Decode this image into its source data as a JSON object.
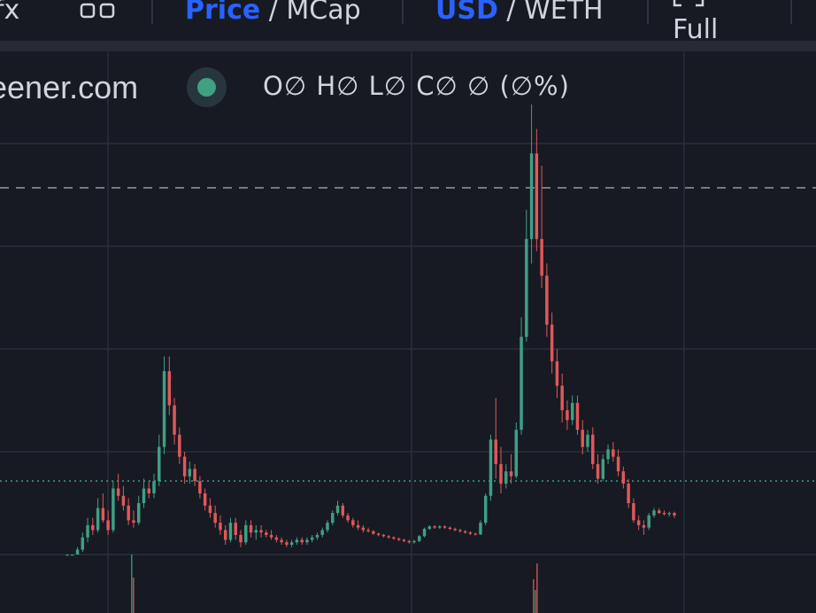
{
  "toolbar": {
    "indicators_icon": "function-fx-icon",
    "indicators_label": "fx",
    "templates_icon": "layout-squares-icon",
    "price_label": "Price",
    "mcap_label": "MCap",
    "usd_label": "USD",
    "weth_label": "WETH",
    "fullscreen_icon": "fullscreen-corners-icon",
    "full_label": "Full",
    "separator": "/"
  },
  "legend": {
    "title": "eener.com",
    "status_color": "#3fa084",
    "o_label": "O",
    "o_value": "∅",
    "h_label": "H",
    "h_value": "∅",
    "l_label": "L",
    "l_value": "∅",
    "c_label": "C",
    "c_value": "∅",
    "change_value": "∅",
    "change_pct": "(∅%)"
  },
  "colors": {
    "background": "#171a23",
    "up": "#3fa084",
    "down": "#e0585b",
    "grid": "#2a2e39",
    "accent": "#2962ff"
  },
  "chart_data": {
    "type": "candlestick",
    "grid": true,
    "reference_line": "dashed horizontal line near upper range",
    "last_price_line": "dotted horizontal line at last close",
    "candles": [
      [
        0.1,
        0.1,
        0.1,
        0.1
      ],
      [
        0.1,
        0.1,
        0.1,
        0.1
      ],
      [
        0.1,
        0.4,
        0.1,
        0.3
      ],
      [
        0.3,
        1.0,
        0.2,
        0.8
      ],
      [
        0.8,
        1.6,
        0.6,
        1.3
      ],
      [
        1.3,
        1.6,
        0.9,
        1.1
      ],
      [
        1.1,
        2.4,
        1.0,
        2.0
      ],
      [
        2.0,
        2.6,
        1.4,
        1.5
      ],
      [
        1.5,
        1.9,
        0.9,
        1.1
      ],
      [
        1.1,
        3.1,
        1.0,
        2.8
      ],
      [
        2.8,
        3.4,
        2.3,
        2.5
      ],
      [
        2.5,
        2.9,
        1.9,
        2.1
      ],
      [
        2.1,
        2.4,
        1.3,
        1.5
      ],
      [
        1.5,
        1.9,
        1.2,
        1.4
      ],
      [
        1.4,
        2.5,
        1.3,
        2.2
      ],
      [
        2.2,
        3.2,
        2.0,
        2.8
      ],
      [
        2.8,
        3.1,
        2.4,
        2.6
      ],
      [
        2.6,
        3.4,
        2.4,
        3.1
      ],
      [
        3.1,
        5.0,
        2.9,
        4.5
      ],
      [
        4.5,
        8.2,
        4.2,
        7.6
      ],
      [
        7.6,
        8.2,
        5.8,
        6.2
      ],
      [
        6.2,
        6.5,
        4.6,
        5.0
      ],
      [
        5.0,
        5.3,
        3.8,
        4.1
      ],
      [
        4.1,
        4.3,
        3.0,
        3.3
      ],
      [
        3.3,
        3.9,
        3.0,
        3.6
      ],
      [
        3.6,
        3.8,
        2.9,
        3.1
      ],
      [
        3.1,
        3.3,
        2.4,
        2.6
      ],
      [
        2.6,
        2.8,
        1.9,
        2.1
      ],
      [
        2.1,
        2.4,
        1.6,
        1.8
      ],
      [
        1.8,
        2.1,
        1.2,
        1.4
      ],
      [
        1.4,
        1.7,
        0.9,
        1.1
      ],
      [
        1.1,
        1.3,
        0.5,
        0.7
      ],
      [
        0.7,
        1.6,
        0.6,
        1.4
      ],
      [
        1.4,
        1.6,
        0.7,
        0.9
      ],
      [
        0.9,
        1.1,
        0.4,
        0.6
      ],
      [
        0.6,
        1.5,
        0.5,
        1.3
      ],
      [
        1.3,
        1.5,
        0.8,
        1.0
      ],
      [
        1.0,
        1.3,
        0.7,
        1.1
      ],
      [
        1.1,
        1.3,
        0.8,
        1.0
      ],
      [
        1.0,
        1.1,
        0.8,
        0.9
      ],
      [
        0.9,
        1.1,
        0.7,
        0.8
      ],
      [
        0.8,
        0.9,
        0.6,
        0.7
      ],
      [
        0.7,
        0.8,
        0.5,
        0.6
      ],
      [
        0.6,
        0.7,
        0.4,
        0.5
      ],
      [
        0.5,
        0.7,
        0.4,
        0.6
      ],
      [
        0.6,
        0.8,
        0.5,
        0.7
      ],
      [
        0.7,
        0.8,
        0.5,
        0.6
      ],
      [
        0.6,
        0.8,
        0.5,
        0.7
      ],
      [
        0.7,
        0.9,
        0.6,
        0.8
      ],
      [
        0.8,
        1.0,
        0.7,
        0.9
      ],
      [
        0.9,
        1.2,
        0.8,
        1.1
      ],
      [
        1.1,
        1.5,
        1.0,
        1.4
      ],
      [
        1.4,
        1.9,
        1.3,
        1.8
      ],
      [
        1.8,
        2.3,
        1.7,
        2.1
      ],
      [
        2.1,
        2.2,
        1.6,
        1.7
      ],
      [
        1.7,
        1.8,
        1.4,
        1.5
      ],
      [
        1.5,
        1.6,
        1.2,
        1.3
      ],
      [
        1.3,
        1.5,
        1.1,
        1.2
      ],
      [
        1.2,
        1.3,
        1.0,
        1.1
      ],
      [
        1.1,
        1.2,
        1.0,
        1.05
      ],
      [
        1.05,
        1.1,
        0.9,
        0.95
      ],
      [
        0.95,
        1.0,
        0.85,
        0.9
      ],
      [
        0.9,
        0.95,
        0.8,
        0.85
      ],
      [
        0.85,
        0.9,
        0.75,
        0.8
      ],
      [
        0.8,
        0.85,
        0.7,
        0.75
      ],
      [
        0.75,
        0.8,
        0.65,
        0.7
      ],
      [
        0.7,
        0.75,
        0.6,
        0.65
      ],
      [
        0.65,
        0.7,
        0.55,
        0.6
      ],
      [
        0.6,
        0.7,
        0.55,
        0.65
      ],
      [
        0.65,
        0.9,
        0.6,
        0.85
      ],
      [
        0.85,
        1.2,
        0.8,
        1.15
      ],
      [
        1.15,
        1.3,
        1.1,
        1.25
      ],
      [
        1.25,
        1.3,
        1.15,
        1.2
      ],
      [
        1.2,
        1.3,
        1.15,
        1.25
      ],
      [
        1.25,
        1.3,
        1.15,
        1.2
      ],
      [
        1.2,
        1.25,
        1.1,
        1.15
      ],
      [
        1.15,
        1.2,
        1.05,
        1.1
      ],
      [
        1.1,
        1.15,
        1.0,
        1.05
      ],
      [
        1.05,
        1.1,
        0.95,
        1.0
      ],
      [
        1.0,
        1.05,
        0.9,
        0.95
      ],
      [
        0.95,
        1.0,
        0.88,
        0.92
      ],
      [
        0.92,
        1.5,
        0.9,
        1.4
      ],
      [
        1.4,
        2.6,
        1.3,
        2.5
      ],
      [
        2.5,
        5.0,
        2.3,
        4.8
      ],
      [
        4.8,
        6.5,
        3.2,
        3.8
      ],
      [
        3.8,
        4.5,
        2.6,
        3.0
      ],
      [
        3.0,
        3.8,
        2.8,
        3.5
      ],
      [
        3.5,
        4.2,
        3.0,
        3.3
      ],
      [
        3.3,
        5.5,
        3.2,
        5.2
      ],
      [
        5.2,
        9.8,
        5.0,
        9.0
      ],
      [
        9.0,
        14.2,
        8.8,
        13.0
      ],
      [
        13.0,
        18.5,
        12.0,
        16.5
      ],
      [
        16.5,
        17.5,
        12.5,
        13.0
      ],
      [
        13.0,
        16.0,
        11.0,
        11.5
      ],
      [
        11.5,
        12.0,
        9.0,
        9.5
      ],
      [
        9.5,
        10.0,
        7.5,
        8.0
      ],
      [
        8.0,
        8.5,
        6.5,
        7.0
      ],
      [
        7.0,
        7.5,
        5.5,
        6.0
      ],
      [
        6.0,
        6.4,
        5.2,
        5.6
      ],
      [
        5.6,
        6.6,
        5.4,
        6.3
      ],
      [
        6.3,
        6.6,
        5.0,
        5.2
      ],
      [
        5.2,
        5.6,
        4.2,
        4.5
      ],
      [
        4.5,
        5.2,
        4.3,
        5.0
      ],
      [
        5.0,
        5.3,
        3.6,
        3.8
      ],
      [
        3.8,
        4.2,
        3.0,
        3.2
      ],
      [
        3.2,
        4.2,
        3.1,
        4.0
      ],
      [
        4.0,
        4.6,
        3.8,
        4.4
      ],
      [
        4.4,
        4.7,
        3.9,
        4.1
      ],
      [
        4.1,
        4.4,
        3.3,
        3.5
      ],
      [
        3.5,
        3.7,
        2.8,
        3.0
      ],
      [
        3.0,
        3.2,
        2.0,
        2.2
      ],
      [
        2.2,
        2.4,
        1.4,
        1.5
      ],
      [
        1.5,
        1.7,
        1.1,
        1.3
      ],
      [
        1.3,
        1.5,
        0.9,
        1.2
      ],
      [
        1.2,
        1.8,
        1.1,
        1.7
      ],
      [
        1.7,
        2.0,
        1.6,
        1.9
      ],
      [
        1.9,
        2.0,
        1.75,
        1.8
      ],
      [
        1.8,
        1.9,
        1.7,
        1.75
      ],
      [
        1.75,
        1.85,
        1.65,
        1.8
      ],
      [
        1.8,
        1.85,
        1.6,
        1.7
      ]
    ]
  }
}
